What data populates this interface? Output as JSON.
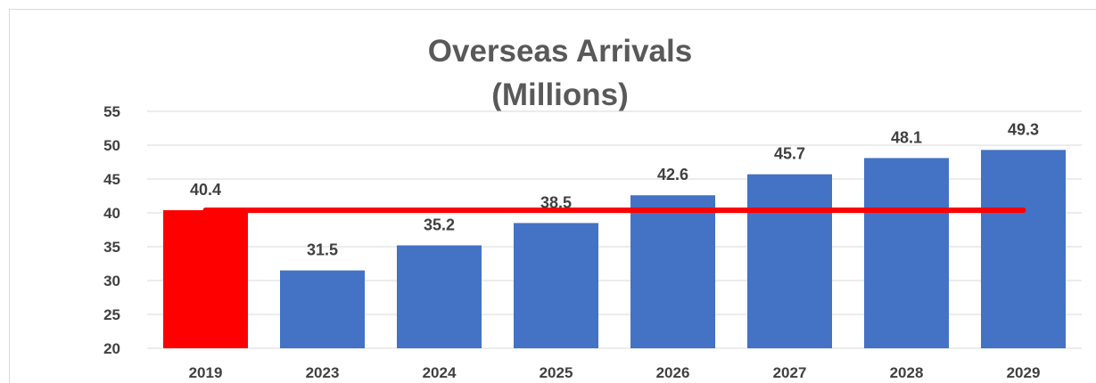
{
  "chart_data": {
    "type": "bar",
    "title_lines": [
      "Overseas Arrivals",
      "(Millions)"
    ],
    "categories": [
      "2019",
      "2023",
      "2024",
      "2025",
      "2026",
      "2027",
      "2028",
      "2029"
    ],
    "values": [
      40.4,
      31.5,
      35.2,
      38.5,
      42.6,
      45.7,
      48.1,
      49.3
    ],
    "data_labels": [
      "40.4",
      "31.5",
      "35.2",
      "38.5",
      "42.6",
      "45.7",
      "48.1",
      "49.3"
    ],
    "yticks": [
      20,
      25,
      30,
      35,
      40,
      45,
      50,
      55
    ],
    "ylim": [
      20,
      55
    ],
    "grid": true,
    "bar_colors": [
      "#ff0000",
      "#4472c4",
      "#4472c4",
      "#4472c4",
      "#4472c4",
      "#4472c4",
      "#4472c4",
      "#4472c4"
    ],
    "reference_line": {
      "value": 40.4,
      "color": "#ff0000"
    },
    "xlabel": "",
    "ylabel": ""
  }
}
